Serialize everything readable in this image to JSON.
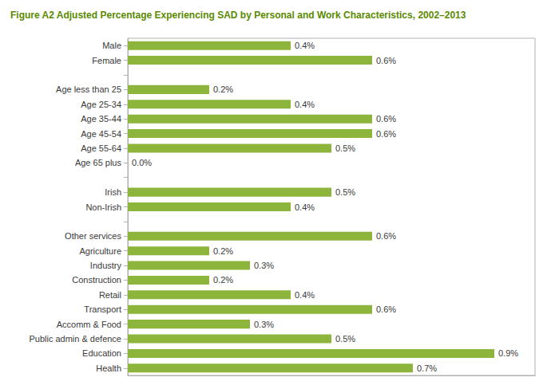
{
  "chart_data": {
    "type": "bar",
    "orientation": "horizontal",
    "title": "Figure A2 Adjusted Percentage Experiencing SAD by Personal and Work Characteristics, 2002–2013",
    "categories": [
      "Male",
      "Female",
      null,
      "Age less than 25",
      "Age 25-34",
      "Age 35-44",
      "Age 45-54",
      "Age 55-64",
      "Age 65 plus",
      null,
      "Irish",
      "Non-Irish",
      null,
      "Other services",
      "Agriculture",
      "Industry",
      "Construction",
      "Retail",
      "Transport",
      "Accomm & Food",
      "Public admin & defence",
      "Education",
      "Health"
    ],
    "values": [
      0.4,
      0.6,
      null,
      0.2,
      0.4,
      0.6,
      0.6,
      0.5,
      0.0,
      null,
      0.5,
      0.4,
      null,
      0.6,
      0.2,
      0.3,
      0.2,
      0.4,
      0.6,
      0.3,
      0.5,
      0.9,
      0.7
    ],
    "value_labels": [
      "0.4%",
      "0.6%",
      null,
      "0.2%",
      "0.4%",
      "0.6%",
      "0.6%",
      "0.5%",
      "0.0%",
      null,
      "0.5%",
      "0.4%",
      null,
      "0.6%",
      "0.2%",
      "0.3%",
      "0.2%",
      "0.4%",
      "0.6%",
      "0.3%",
      "0.5%",
      "0.9%",
      "0.7%"
    ],
    "color": "#8db53c",
    "xlim": [
      0,
      1.0
    ],
    "grid": false,
    "data_labels": true,
    "tick_labels": "y"
  }
}
